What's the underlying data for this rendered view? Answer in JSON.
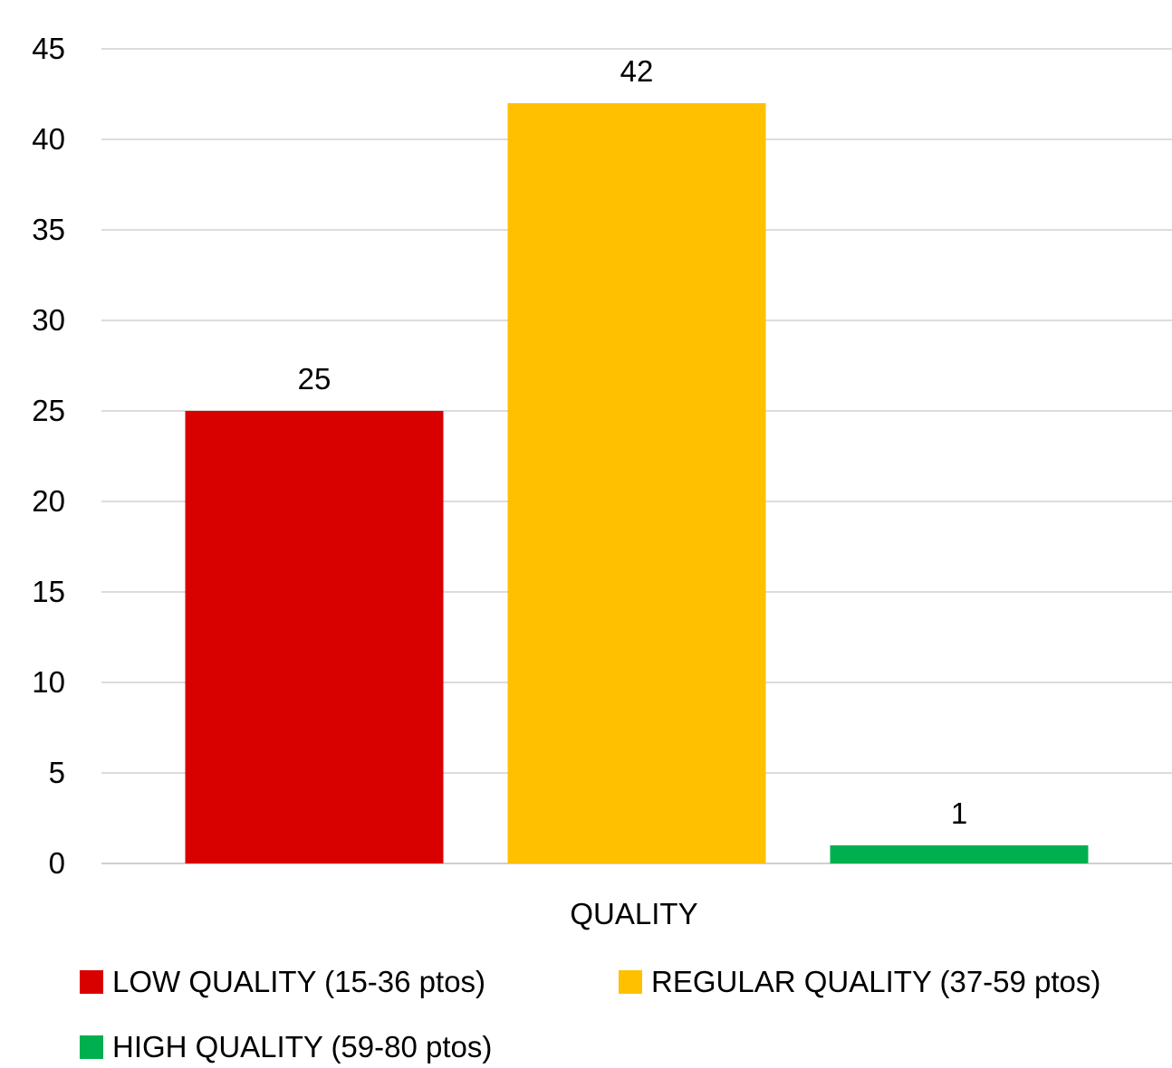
{
  "chart_data": {
    "type": "bar",
    "categories": [
      "QUALITY"
    ],
    "xlabel": "",
    "ylabel": "",
    "ylim": [
      0,
      45
    ],
    "yticks": [
      0,
      5,
      10,
      15,
      20,
      25,
      30,
      35,
      40,
      45
    ],
    "grid": true,
    "legend_position": "bottom",
    "show_data_labels": true,
    "series": [
      {
        "name": "LOW QUALITY (15-36 ptos)",
        "values": [
          25
        ],
        "color": "#d90000"
      },
      {
        "name": "REGULAR QUALITY (37-59 ptos)",
        "values": [
          42
        ],
        "color": "#ffc000"
      },
      {
        "name": "HIGH QUALITY (59-80 ptos)",
        "values": [
          1
        ],
        "color": "#00b050"
      }
    ]
  }
}
